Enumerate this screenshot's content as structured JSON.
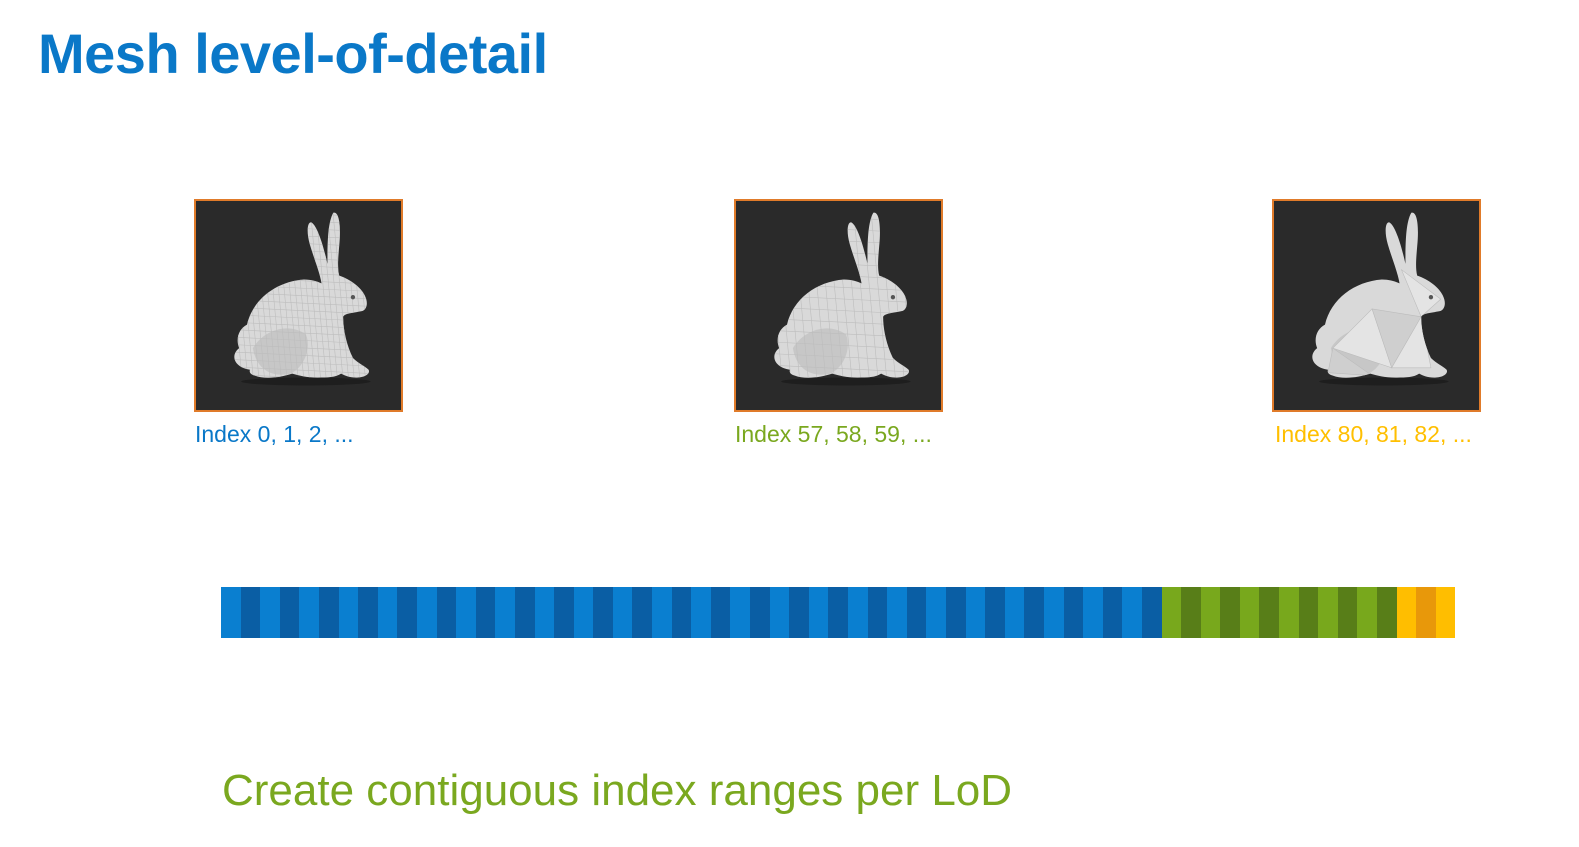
{
  "title": "Mesh level-of-detail",
  "lods": [
    {
      "caption": "Index 0, 1, 2, ...",
      "color": "#0a78c8",
      "mesh": "fine"
    },
    {
      "caption": "Index 57, 58, 59, ...",
      "color": "#7aa81f",
      "mesh": "medium"
    },
    {
      "caption": "Index 80, 81, 82, ...",
      "color": "#ffbf00",
      "mesh": "coarse"
    }
  ],
  "index_buffer": {
    "ranges": [
      {
        "lod": 0,
        "segments": 48,
        "color_a": "#0a7fd0",
        "color_b": "#0a5ea4"
      },
      {
        "lod": 1,
        "segments": 12,
        "color_a": "#78a81c",
        "color_b": "#587e18"
      },
      {
        "lod": 2,
        "segments": 3,
        "color_a": "#ffbe00",
        "color_b": "#e8980a"
      }
    ]
  },
  "footer": "Create contiguous index ranges per LoD",
  "icons": {
    "thumbnail": "bunny-icon"
  }
}
